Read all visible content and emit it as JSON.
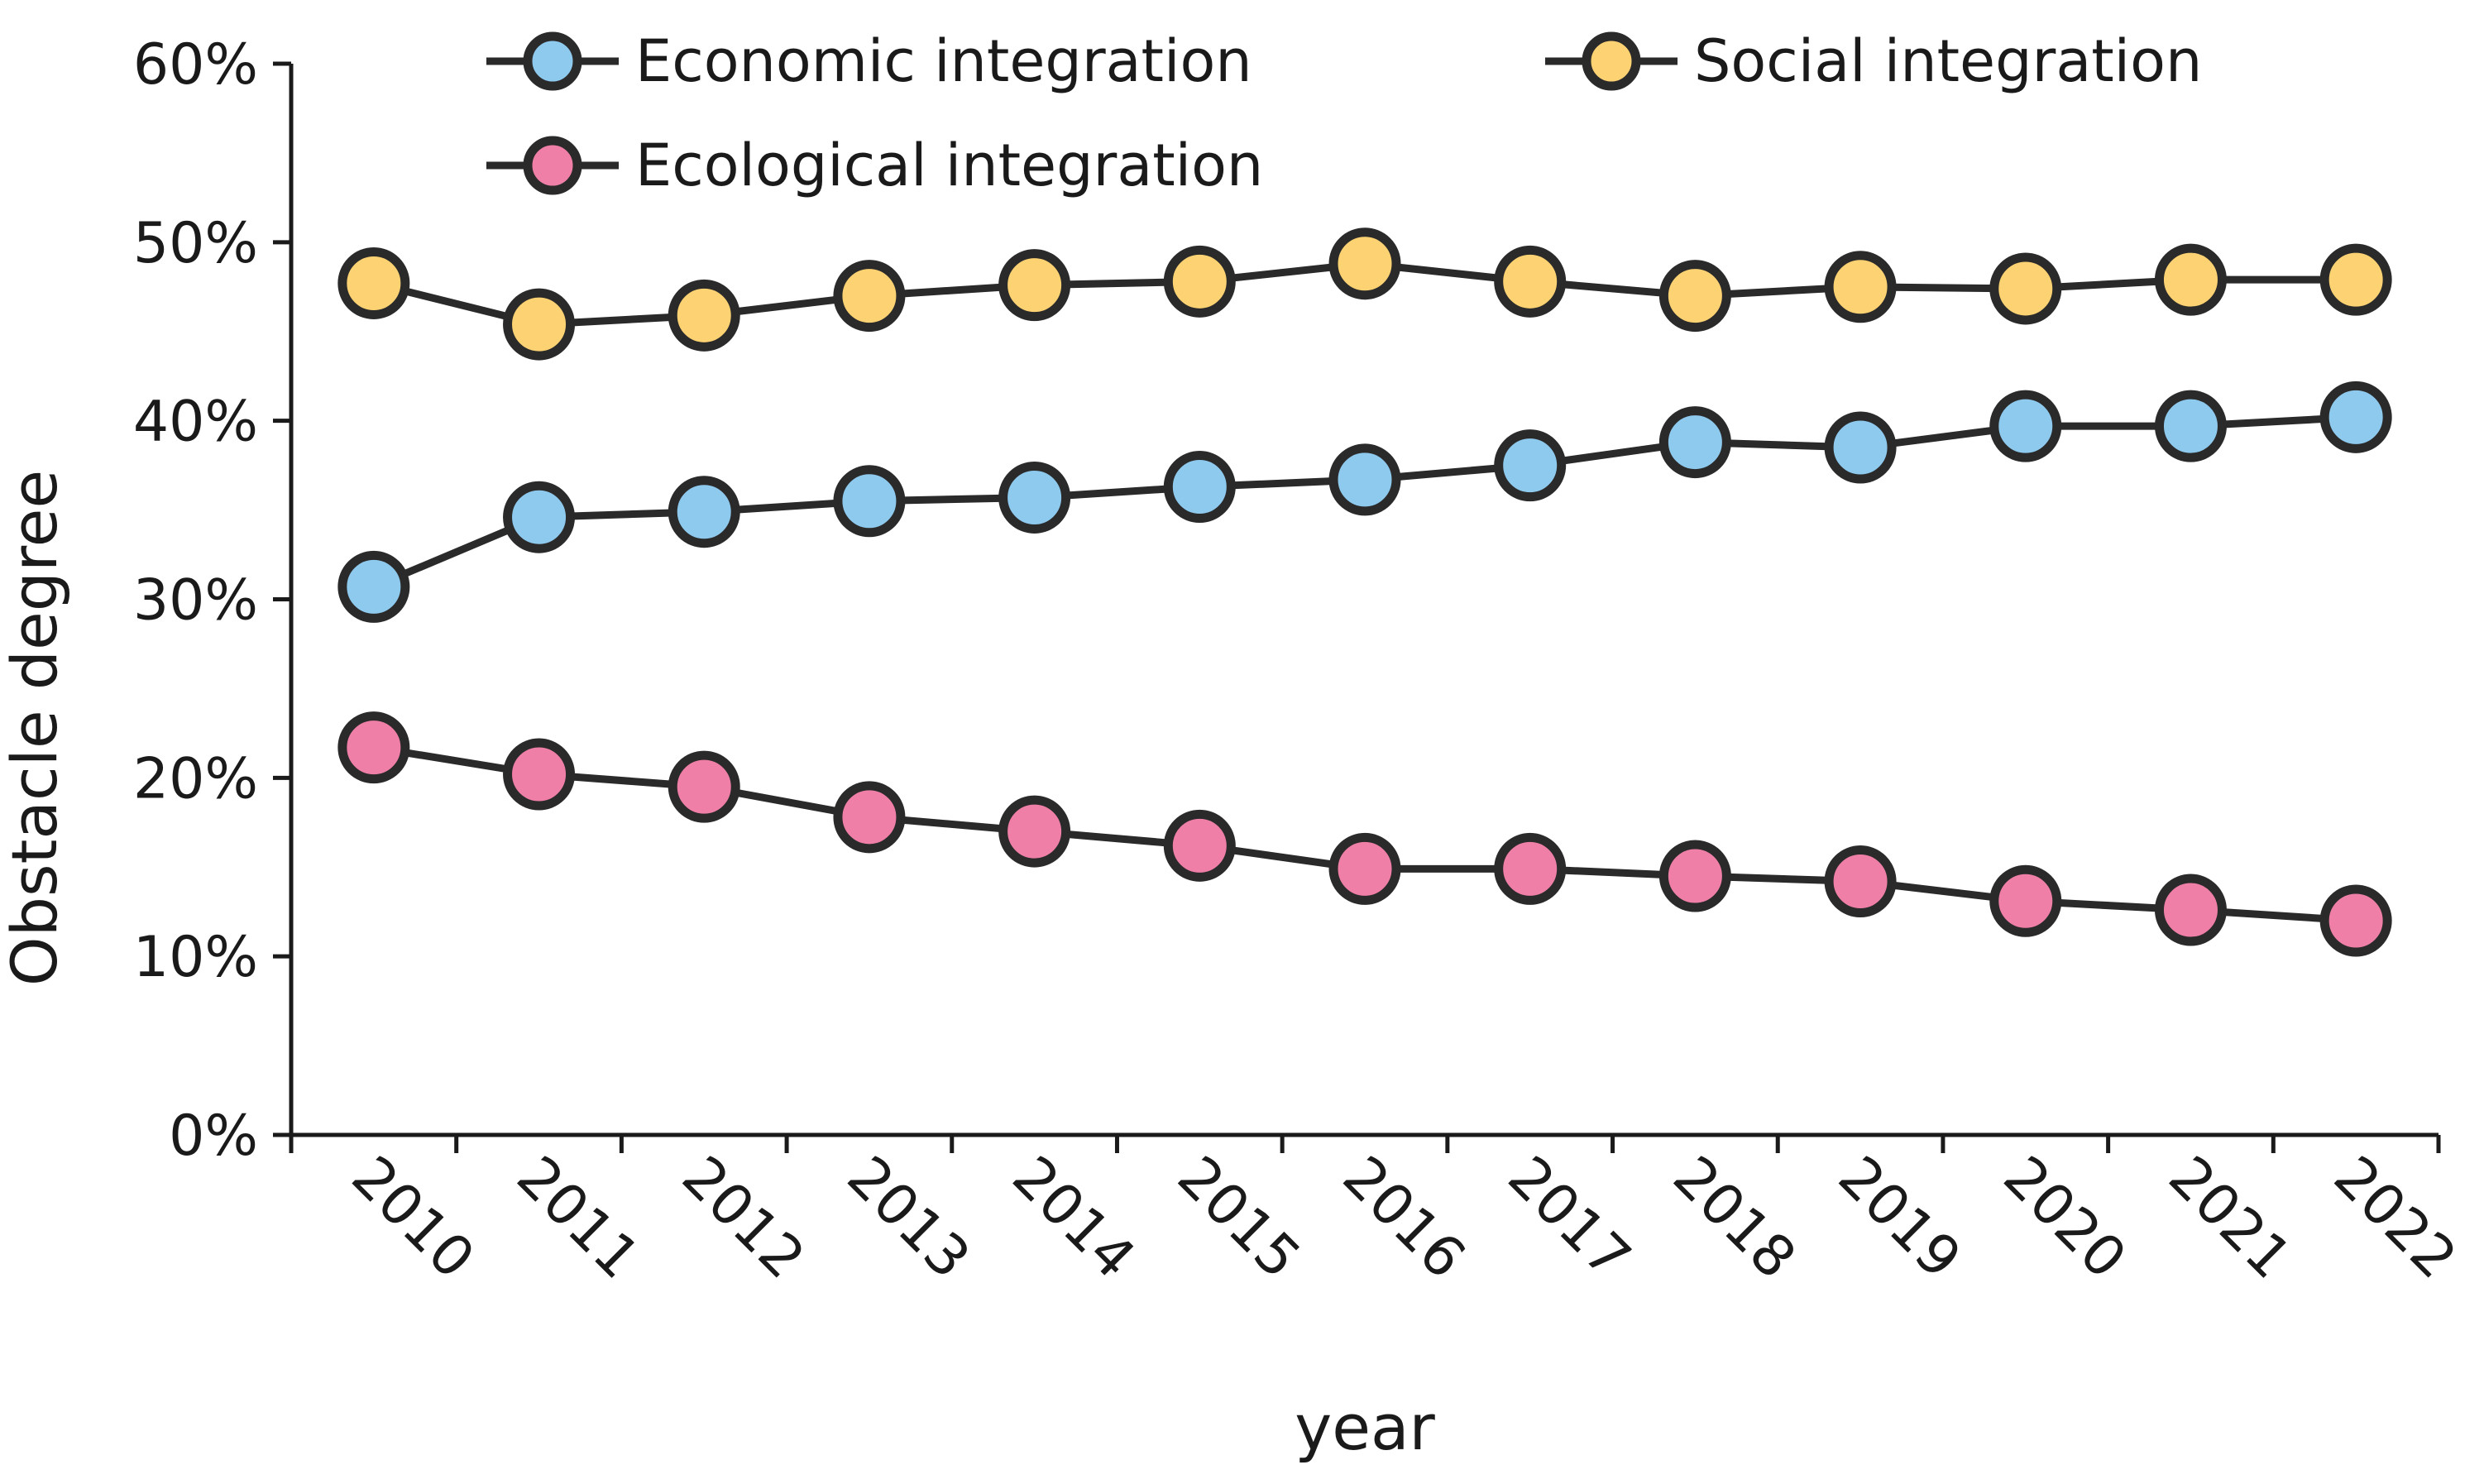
{
  "chart_data": {
    "type": "line",
    "title": "",
    "xlabel": "year",
    "ylabel": "Obstacle degree",
    "categories": [
      "2010",
      "2011",
      "2012",
      "2013",
      "2014",
      "2015",
      "2016",
      "2017",
      "2018",
      "2019",
      "2020",
      "2021",
      "2022"
    ],
    "ylim": [
      0,
      60
    ],
    "yticks": [
      0,
      10,
      20,
      30,
      40,
      50,
      60
    ],
    "ytick_labels": [
      "0%",
      "10%",
      "20%",
      "30%",
      "40%",
      "50%",
      "60%"
    ],
    "legend_position": "top",
    "series": [
      {
        "name": "Economic integration",
        "color": "#8ec9ee",
        "values": [
          30.7,
          34.6,
          34.9,
          35.5,
          35.7,
          36.3,
          36.7,
          37.5,
          38.8,
          38.5,
          39.7,
          39.7,
          40.2
        ]
      },
      {
        "name": "Social integration",
        "color": "#fdd272",
        "values": [
          47.7,
          45.4,
          45.9,
          47.0,
          47.6,
          47.8,
          48.8,
          47.8,
          47.0,
          47.5,
          47.4,
          47.9,
          47.9
        ]
      },
      {
        "name": "Ecological integration",
        "color": "#f07fa7",
        "values": [
          21.7,
          20.2,
          19.5,
          17.8,
          17.0,
          16.2,
          14.9,
          14.9,
          14.5,
          14.2,
          13.1,
          12.6,
          12.0
        ]
      }
    ]
  }
}
